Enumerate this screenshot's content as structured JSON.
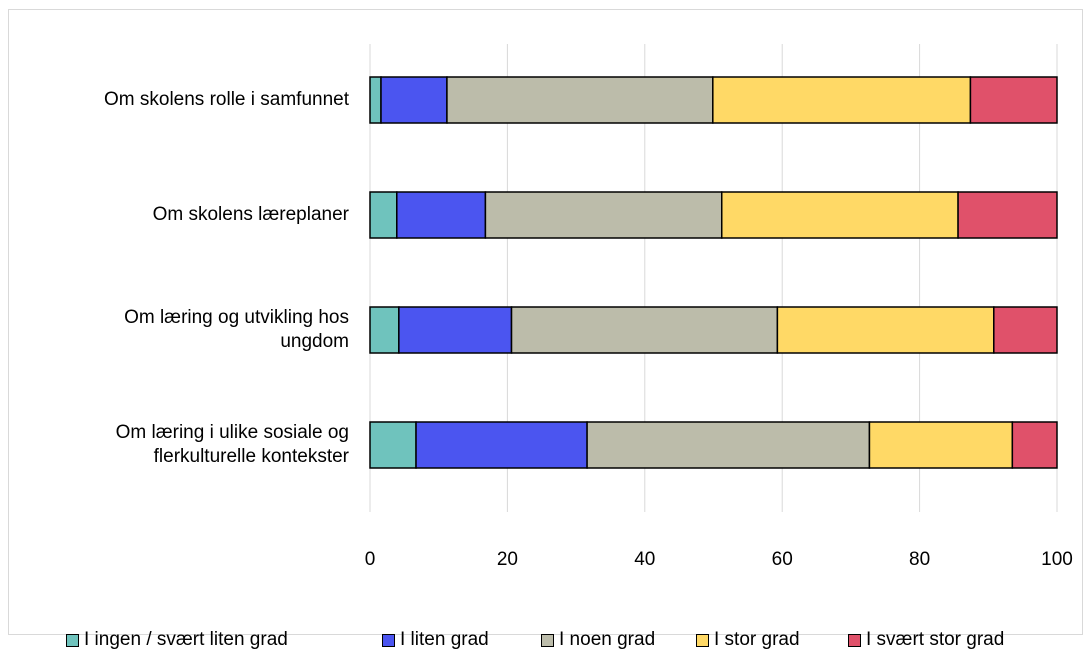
{
  "chart_data": {
    "type": "bar",
    "orientation": "horizontal",
    "stacked": true,
    "categories": [
      "Om skolens rolle i samfunnet",
      "Om skolens læreplaner",
      "Om læring og utvikling hos ungdom",
      "Om læring i ulike sosiale og flerkulturelle kontekster"
    ],
    "series": [
      {
        "name": "I ingen / svært liten grad",
        "color": "#6fc3bd",
        "values": [
          1.6,
          3.9,
          4.2,
          6.7
        ]
      },
      {
        "name": "I liten grad",
        "color": "#4b55f0",
        "values": [
          9.6,
          12.9,
          16.4,
          24.9
        ]
      },
      {
        "name": "I noen grad",
        "color": "#bcbcaa",
        "values": [
          38.7,
          34.4,
          38.7,
          41.1
        ]
      },
      {
        "name": "I stor grad",
        "color": "#ffd966",
        "values": [
          37.5,
          34.4,
          31.5,
          20.8
        ]
      },
      {
        "name": "I svært stor grad",
        "color": "#e0516a",
        "values": [
          12.6,
          14.4,
          9.2,
          6.5
        ]
      }
    ],
    "xlim": [
      0,
      100
    ],
    "xticks": [
      "0",
      "20",
      "40",
      "60",
      "80",
      "100"
    ],
    "grid": true,
    "legend": "bottom",
    "title": "",
    "xlabel": "",
    "ylabel": ""
  }
}
